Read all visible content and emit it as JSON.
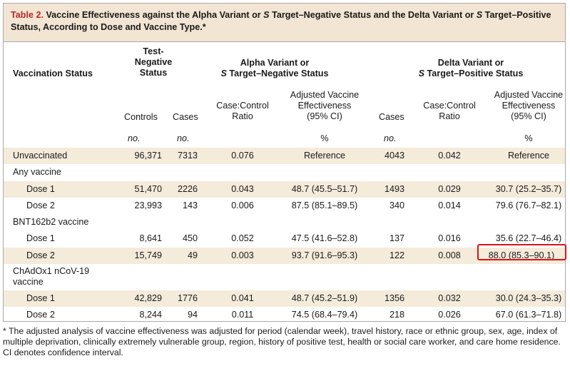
{
  "title": {
    "number": "Table 2.",
    "text_a": " Vaccine Effectiveness against the Alpha Variant or ",
    "s1": "S",
    "text_b": " Target–Negative Status and the Delta Variant or ",
    "s2": "S",
    "text_c": " Target–Positive Status, According to Dose and Vaccine Type.*"
  },
  "header": {
    "vaccination_status": "Vaccination Status",
    "test_negative": [
      "Test-",
      "Negative",
      "Status"
    ],
    "alpha": [
      "Alpha Variant or",
      "S",
      " Target–Negative Status"
    ],
    "delta": [
      "Delta Variant or",
      "S",
      " Target–Positive Status"
    ],
    "controls": "Controls",
    "cases": "Cases",
    "case_control_ratio": [
      "Case:Control",
      "Ratio"
    ],
    "adjusted_ve": [
      "Adjusted Vaccine",
      "Effectiveness",
      "(95% CI)"
    ],
    "units": {
      "no": "no.",
      "pct": "%"
    }
  },
  "rows": [
    {
      "label": "Unvaccinated",
      "controls": "96,371",
      "alpha_cases": "7313",
      "alpha_ratio": "0.076",
      "alpha_ve": "Reference",
      "delta_cases": "4043",
      "delta_ratio": "0.042",
      "delta_ve": "Reference"
    },
    {
      "label": "Any vaccine"
    },
    {
      "label": "Dose 1",
      "controls": "51,470",
      "alpha_cases": "2226",
      "alpha_ratio": "0.043",
      "alpha_ve": "48.7 (45.5–51.7)",
      "delta_cases": "1493",
      "delta_ratio": "0.029",
      "delta_ve": "30.7 (25.2–35.7)"
    },
    {
      "label": "Dose 2",
      "controls": "23,993",
      "alpha_cases": "143",
      "alpha_ratio": "0.006",
      "alpha_ve": "87.5 (85.1–89.5)",
      "delta_cases": "340",
      "delta_ratio": "0.014",
      "delta_ve": "79.6 (76.7–82.1)"
    },
    {
      "label": "BNT162b2 vaccine"
    },
    {
      "label": "Dose 1",
      "controls": "8,641",
      "alpha_cases": "450",
      "alpha_ratio": "0.052",
      "alpha_ve": "47.5 (41.6–52.8)",
      "delta_cases": "137",
      "delta_ratio": "0.016",
      "delta_ve": "35.6 (22.7–46.4)"
    },
    {
      "label": "Dose 2",
      "controls": "15,749",
      "alpha_cases": "49",
      "alpha_ratio": "0.003",
      "alpha_ve": "93.7 (91.6–95.3)",
      "delta_cases": "122",
      "delta_ratio": "0.008",
      "delta_ve": "88.0 (85.3–90.1)"
    },
    {
      "label": "ChAdOx1 nCoV-19",
      "label2": "vaccine"
    },
    {
      "label": "Dose 1",
      "controls": "42,829",
      "alpha_cases": "1776",
      "alpha_ratio": "0.041",
      "alpha_ve": "48.7 (45.2–51.9)",
      "delta_cases": "1356",
      "delta_ratio": "0.032",
      "delta_ve": "30.0 (24.3–35.3)"
    },
    {
      "label": "Dose 2",
      "controls": "8,244",
      "alpha_cases": "94",
      "alpha_ratio": "0.011",
      "alpha_ve": "74.5 (68.4–79.4)",
      "delta_cases": "218",
      "delta_ratio": "0.026",
      "delta_ve": "67.0 (61.3–71.8)"
    }
  ],
  "footnote": "* The adjusted analysis of vaccine effectiveness was adjusted for period (calendar week), travel history, race or ethnic group, sex, age, index of multiple deprivation, clinically extremely vulnerable group, region, history of positive test, health or social care worker, and care home residence. CI denotes confidence interval.",
  "highlight_color": "#d8141c",
  "accent_color": "#b5282c",
  "stripe_color": "#f5ebdb"
}
